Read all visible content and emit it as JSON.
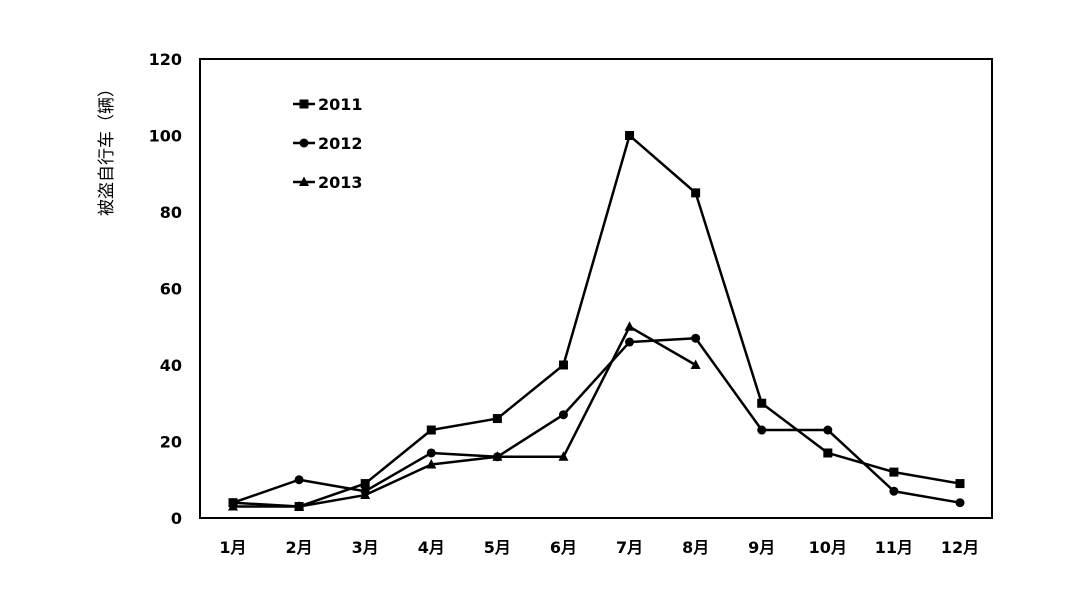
{
  "chart_data": {
    "type": "line",
    "title": "",
    "xlabel": "",
    "ylabel": "被盗自行车（辆）",
    "categories": [
      "1月",
      "2月",
      "3月",
      "4月",
      "5月",
      "6月",
      "7月",
      "8月",
      "9月",
      "10月",
      "11月",
      "12月"
    ],
    "ylim": [
      0,
      120
    ],
    "yticks": [
      "0",
      "20",
      "40",
      "60",
      "80",
      "100",
      "120"
    ],
    "grid": false,
    "legend_position": "top-left",
    "series": [
      {
        "name": "2011",
        "marker": "square",
        "color": "#000000",
        "values": [
          4,
          3,
          9,
          23,
          26,
          40,
          100,
          85,
          30,
          17,
          12,
          9
        ]
      },
      {
        "name": "2012",
        "marker": "circle",
        "color": "#000000",
        "values": [
          4,
          10,
          7,
          17,
          16,
          27,
          46,
          47,
          23,
          23,
          7,
          4
        ]
      },
      {
        "name": "2013",
        "marker": "triangle",
        "color": "#000000",
        "values": [
          3,
          3,
          6,
          14,
          16,
          16,
          50,
          40,
          null,
          null,
          null,
          null
        ]
      }
    ]
  }
}
